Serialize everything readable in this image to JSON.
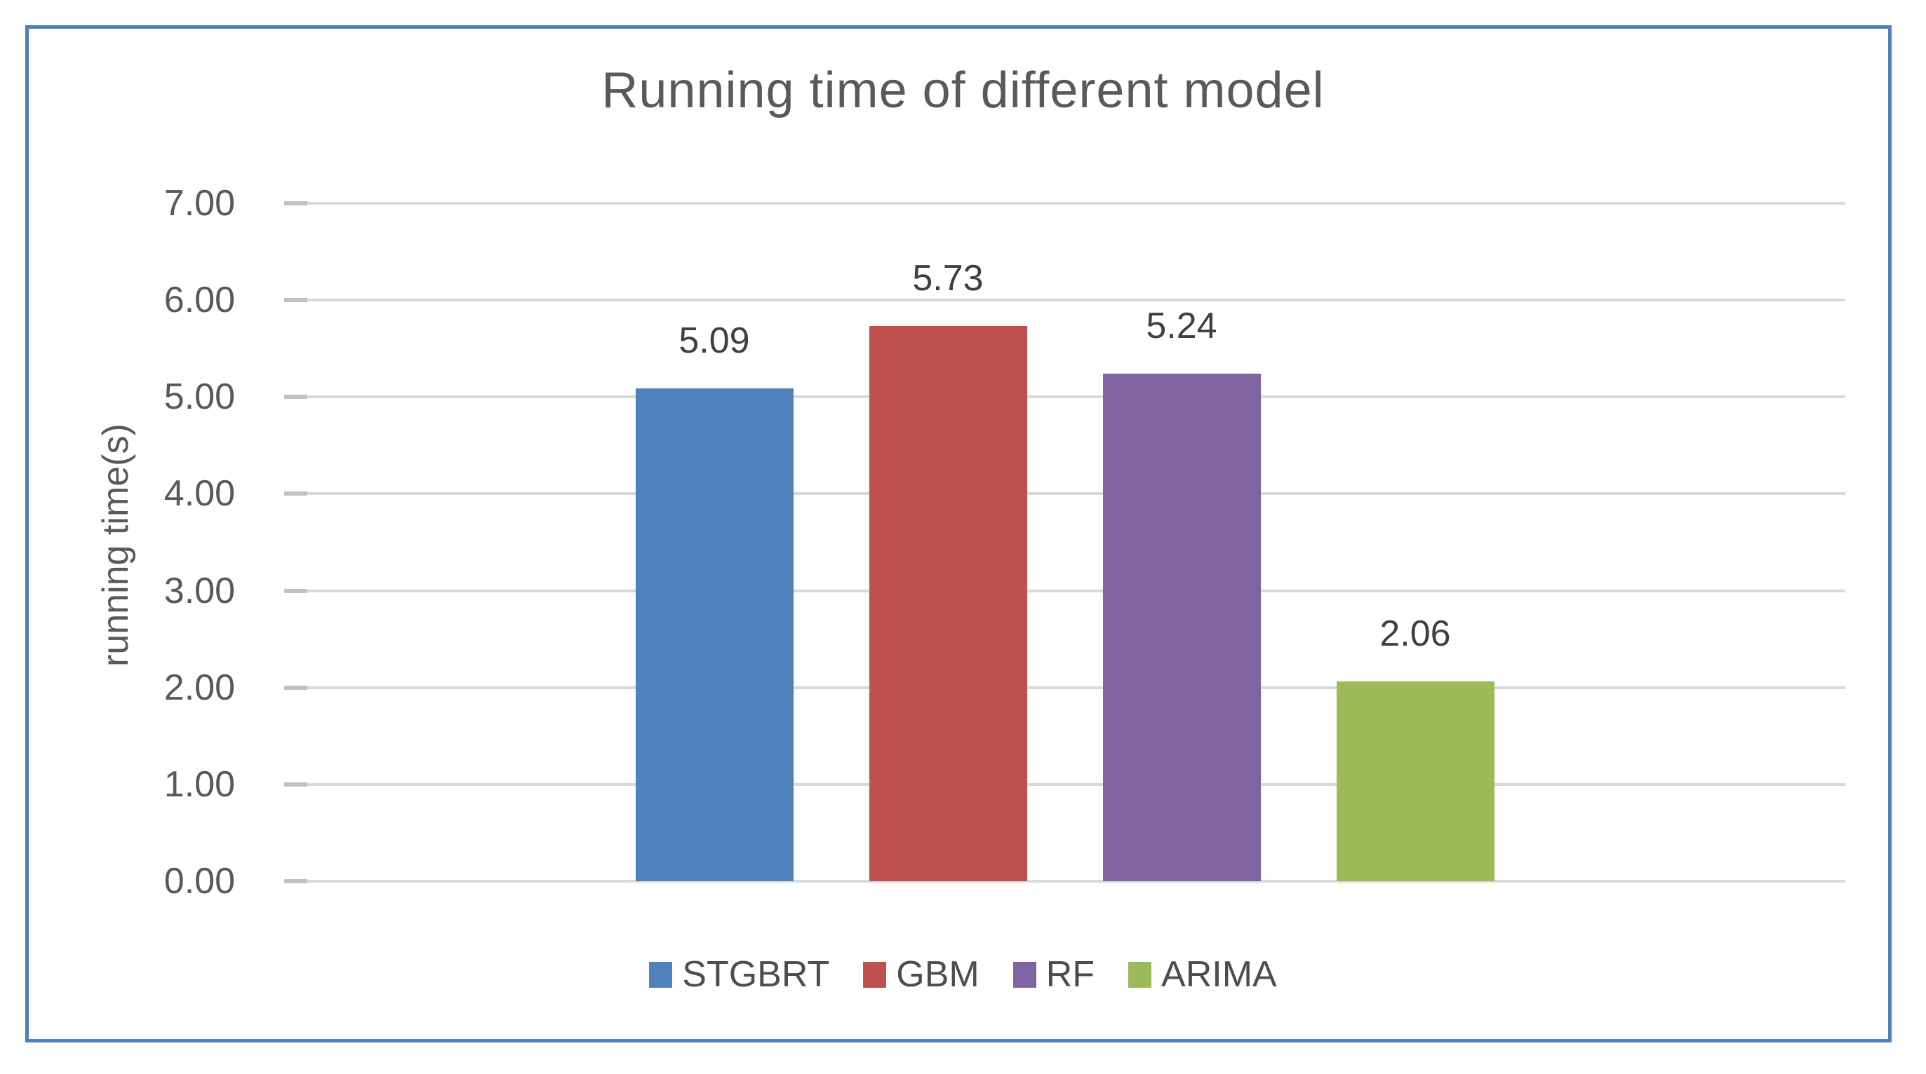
{
  "figure": {
    "background": "#ffffff",
    "border_color": "#4e80bc"
  },
  "chart_data": {
    "type": "bar",
    "title": "Running time of different model",
    "categories": [
      "STGBRT",
      "GBM",
      "RF",
      "ARIMA"
    ],
    "values": [
      5.09,
      5.73,
      5.24,
      2.06
    ],
    "value_labels": [
      "5.09",
      "5.73",
      "5.24",
      "2.06"
    ],
    "bar_colors": [
      "#4f81bd",
      "#c0504d",
      "#8064a2",
      "#9bbb59"
    ],
    "xlabel": "",
    "ylabel": "running time(s)",
    "ylim": [
      0,
      7
    ],
    "ytick_interval": 1,
    "yticks": [
      {
        "value": 7,
        "label": "7.00"
      },
      {
        "value": 6,
        "label": "6.00"
      },
      {
        "value": 5,
        "label": "5.00"
      },
      {
        "value": 4,
        "label": "4.00"
      },
      {
        "value": 3,
        "label": "3.00"
      },
      {
        "value": 2,
        "label": "2.00"
      },
      {
        "value": 1,
        "label": "1.00"
      },
      {
        "value": 0,
        "label": "0.00"
      }
    ],
    "grid": true,
    "gridline_color": "#d9d9d9",
    "tick_mark_color": "#c1c1c1",
    "legend_position": "bottom",
    "legend": {
      "items": [
        {
          "label": "STGBRT",
          "color": "#4f81bd"
        },
        {
          "label": "GBM",
          "color": "#c0504d"
        },
        {
          "label": "RF",
          "color": "#8064a2"
        },
        {
          "label": "ARIMA",
          "color": "#9bbb59"
        }
      ]
    },
    "text_colors": {
      "title": "#595959",
      "axis_labels": "#595959",
      "data_labels": "#404040",
      "legend_labels": "#4d4d4d"
    }
  }
}
